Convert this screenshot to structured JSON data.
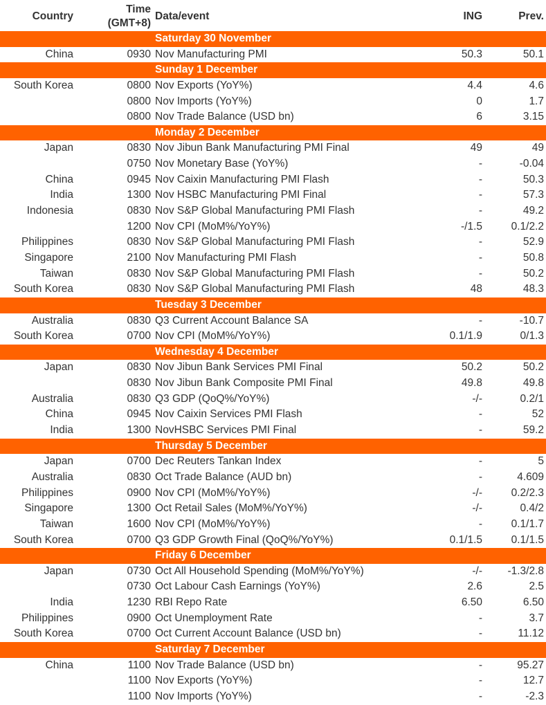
{
  "colors": {
    "band": "#FF6200",
    "text": "#333333"
  },
  "header": {
    "country": "Country",
    "time_line1": "Time",
    "time_line2": "(GMT+8)",
    "event": "Data/event",
    "ing": "ING",
    "prev": "Prev."
  },
  "days": [
    {
      "label": "Saturday 30 November",
      "rows": [
        [
          "China",
          "0930",
          "Nov Manufacturing PMI",
          "50.3",
          "50.1"
        ]
      ]
    },
    {
      "label": "Sunday 1 December",
      "rows": [
        [
          "South Korea",
          "0800",
          "Nov Exports (YoY%)",
          "4.4",
          "4.6"
        ],
        [
          "",
          "0800",
          "Nov Imports (YoY%)",
          "0",
          "1.7"
        ],
        [
          "",
          "0800",
          "Nov Trade Balance (USD bn)",
          "6",
          "3.15"
        ]
      ]
    },
    {
      "label": "Monday 2 December",
      "rows": [
        [
          "Japan",
          "0830",
          "Nov Jibun Bank Manufacturing PMI Final",
          "49",
          "49"
        ],
        [
          "",
          "0750",
          "Nov Monetary Base (YoY%)",
          "-",
          "-0.04"
        ],
        [
          "China",
          "0945",
          "Nov Caixin Manufacturing PMI Flash",
          "-",
          "50.3"
        ],
        [
          "India",
          "1300",
          "Nov HSBC Manufacturing PMI Final",
          "-",
          "57.3"
        ],
        [
          "Indonesia",
          "0830",
          "Nov S&P Global Manufacturing PMI Flash",
          "-",
          "49.2"
        ],
        [
          "",
          "1200",
          "Nov CPI (MoM%/YoY%)",
          "-/1.5",
          "0.1/2.2"
        ],
        [
          "Philippines",
          "0830",
          "Nov S&P Global Manufacturing PMI Flash",
          "-",
          "52.9"
        ],
        [
          "Singapore",
          "2100",
          "Nov Manufacturing PMI Flash",
          "-",
          "50.8"
        ],
        [
          "Taiwan",
          "0830",
          "Nov S&P Global Manufacturing PMI Flash",
          "-",
          "50.2"
        ],
        [
          "South Korea",
          "0830",
          "Nov S&P Global Manufacturing PMI Flash",
          "48",
          "48.3"
        ]
      ]
    },
    {
      "label": "Tuesday 3 December",
      "rows": [
        [
          "Australia",
          "0830",
          "Q3 Current Account Balance SA",
          "-",
          "-10.7"
        ],
        [
          "South Korea",
          "0700",
          "Nov CPI (MoM%/YoY%)",
          "0.1/1.9",
          "0/1.3"
        ]
      ]
    },
    {
      "label": "Wednesday 4 December",
      "rows": [
        [
          "Japan",
          "0830",
          "Nov Jibun Bank Services PMI Final",
          "50.2",
          "50.2"
        ],
        [
          "",
          "0830",
          "Nov Jibun Bank Composite PMI Final",
          "49.8",
          "49.8"
        ],
        [
          "Australia",
          "0830",
          "Q3 GDP (QoQ%/YoY%)",
          "-/-",
          "0.2/1"
        ],
        [
          "China",
          "0945",
          "Nov Caixin Services PMI Flash",
          "-",
          "52"
        ],
        [
          "India",
          "1300",
          "NovHSBC Services PMI Final",
          "-",
          "59.2"
        ]
      ]
    },
    {
      "label": "Thursday 5 December",
      "rows": [
        [
          "Japan",
          "0700",
          "Dec Reuters Tankan Index",
          "-",
          "5"
        ],
        [
          "Australia",
          "0830",
          "Oct Trade Balance (AUD bn)",
          "-",
          "4.609"
        ],
        [
          "Philippines",
          "0900",
          "Nov CPI (MoM%/YoY%)",
          "-/-",
          "0.2/2.3"
        ],
        [
          "Singapore",
          "1300",
          "Oct Retail Sales (MoM%/YoY%)",
          "-/-",
          "0.4/2"
        ],
        [
          "Taiwan",
          "1600",
          "Nov CPI (MoM%/YoY%)",
          "-",
          "0.1/1.7"
        ],
        [
          "South Korea",
          "0700",
          "Q3 GDP Growth Final (QoQ%/YoY%)",
          "0.1/1.5",
          "0.1/1.5"
        ]
      ]
    },
    {
      "label": "Friday 6 December",
      "rows": [
        [
          "Japan",
          "0730",
          "Oct All Household Spending (MoM%/YoY%)",
          "-/-",
          "-1.3/2.8"
        ],
        [
          "",
          "0730",
          "Oct Labour Cash Earnings (YoY%)",
          "2.6",
          "2.5"
        ],
        [
          "India",
          "1230",
          "RBI Repo Rate",
          "6.50",
          "6.50"
        ],
        [
          "Philippines",
          "0900",
          "Oct Unemployment Rate",
          "-",
          "3.7"
        ],
        [
          "South Korea",
          "0700",
          "Oct Current Account Balance (USD bn)",
          "-",
          "11.12"
        ]
      ]
    },
    {
      "label": "Saturday 7 December",
      "rows": [
        [
          "China",
          "1100",
          "Nov Trade Balance (USD bn)",
          "-",
          "95.27"
        ],
        [
          "",
          "1100",
          "Nov Exports (YoY%)",
          "-",
          "12.7"
        ],
        [
          "",
          "1100",
          "Nov Imports (YoY%)",
          "-",
          "-2.3"
        ]
      ]
    }
  ]
}
